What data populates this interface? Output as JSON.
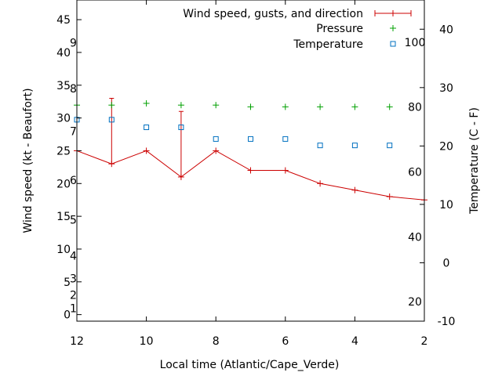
{
  "chart_data": {
    "type": "line",
    "xlabel": "Local time (Atlantic/Cape_Verde)",
    "ylabel": "Wind speed (kt - Beaufort)",
    "y2label": "Temperature (C - F)",
    "x_ticks": [
      "12",
      "10",
      "8",
      "6",
      "4",
      "2"
    ],
    "x_tick_values": [
      12,
      10,
      8,
      6,
      4,
      2
    ],
    "xlim": [
      12,
      2
    ],
    "x_reversed": true,
    "ylim": [
      -1,
      48
    ],
    "y_ticks": [
      "0",
      "5",
      "10",
      "15",
      "20",
      "25",
      "30",
      "35",
      "40",
      "45"
    ],
    "y_tick_values": [
      0,
      5,
      10,
      15,
      20,
      25,
      30,
      35,
      40,
      45
    ],
    "beaufort_labels": [
      "1",
      "2",
      "3",
      "4",
      "5",
      "6",
      "7",
      "8",
      "9"
    ],
    "beaufort_values": [
      1,
      3,
      5.5,
      9,
      14.5,
      20.5,
      28,
      34.5,
      41.5
    ],
    "y2lim": [
      -10,
      45
    ],
    "y2_ticks": [
      "-10",
      "0",
      "10",
      "20",
      "30",
      "40"
    ],
    "y2_tick_values": [
      -10,
      0,
      10,
      20,
      30,
      40
    ],
    "fahrenheit_labels": [
      "20",
      "40",
      "60",
      "80",
      "100"
    ],
    "fahrenheit_values": [
      20,
      40,
      60,
      80,
      100
    ],
    "grid": false,
    "legend_position": "top-right",
    "legend": {
      "wind": "Wind speed, gusts, and direction",
      "pressure": "Pressure",
      "temperature": "Temperature"
    },
    "series": [
      {
        "name": "Wind speed, gusts, and direction",
        "color": "#cc0000",
        "x": [
          12,
          11,
          10,
          9,
          8,
          7,
          6,
          5,
          4,
          3,
          2
        ],
        "values": [
          25,
          23,
          25,
          21,
          25,
          22,
          22,
          20,
          19,
          18,
          17.5
        ]
      },
      {
        "name": "Pressure",
        "color": "#00a000",
        "axis": "right",
        "x": [
          12,
          11,
          10,
          9,
          8,
          7,
          6,
          5,
          4,
          3
        ],
        "values": [
          27,
          27,
          27.3,
          27,
          27,
          26.7,
          26.7,
          26.7,
          26.7,
          26.7
        ]
      },
      {
        "name": "Temperature",
        "color": "#0070c0",
        "axis": "right",
        "x": [
          12,
          11,
          10,
          9,
          8,
          7,
          6,
          5,
          4,
          3
        ],
        "values": [
          24.5,
          24.5,
          23.2,
          23.2,
          21.2,
          21.2,
          21.2,
          20.1,
          20.1,
          20.1
        ]
      }
    ],
    "gusts": [
      {
        "x": 11,
        "from": 23,
        "to": 33
      },
      {
        "x": 9,
        "from": 21,
        "to": 31
      }
    ]
  }
}
